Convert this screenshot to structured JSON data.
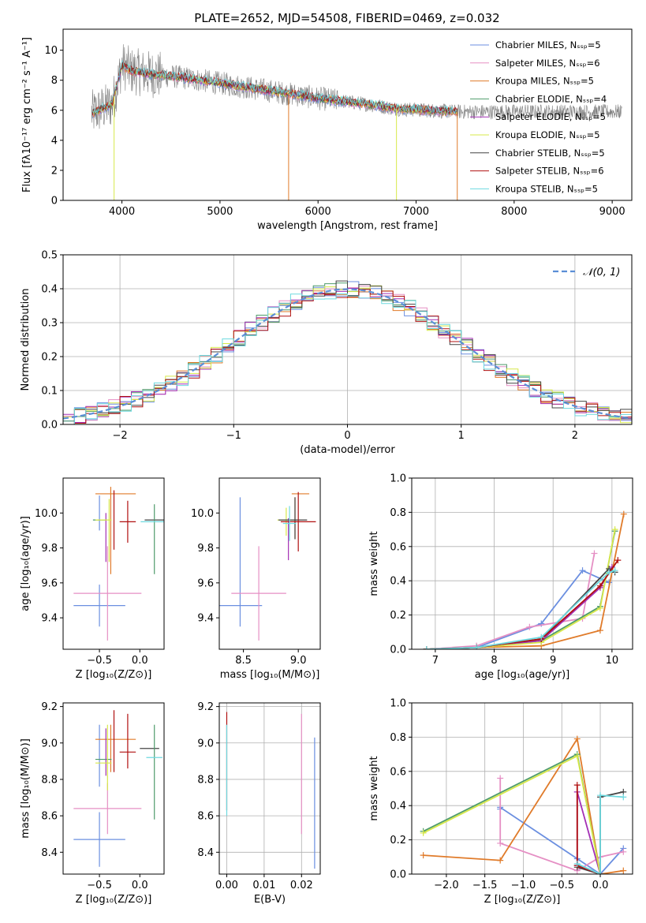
{
  "figure": {
    "title": "PLATE=2652, MJD=54508, FIBERID=0469, z=0.032"
  },
  "chart_data": [
    {
      "id": "spectrum",
      "type": "line",
      "title": "PLATE=2652, MJD=54508, FIBERID=0469, z=0.032",
      "xlabel": "wavelength [Angstrom, rest frame]",
      "ylabel": "Flux [fλ10⁻¹⁷ erg cm⁻² s⁻¹ A⁻¹]",
      "xlim": [
        3400,
        9200
      ],
      "ylim": [
        0,
        11.4
      ],
      "xticks": [
        4000,
        5000,
        6000,
        7000,
        8000,
        9000
      ],
      "yticks": [
        0,
        2,
        4,
        6,
        8,
        10
      ],
      "grid": false,
      "legend_position": "top-right",
      "data_trend": {
        "x": [
          3700,
          3900,
          4000,
          4100,
          4300,
          4600,
          5000,
          5500,
          6000,
          6500,
          6800,
          7100,
          7400
        ],
        "y": [
          5.8,
          6.4,
          9.0,
          8.6,
          8.4,
          8.2,
          7.8,
          7.3,
          6.8,
          6.4,
          6.1,
          6.0,
          5.9
        ]
      },
      "series": [
        {
          "name": "Chabrier MILES, N_SSP=5",
          "color": "#6b8fe0"
        },
        {
          "name": "Salpeter MILES, N_SSP=6",
          "color": "#e58fc4"
        },
        {
          "name": "Kroupa MILES, N_SSP=5",
          "color": "#e07b2a"
        },
        {
          "name": "Chabrier ELODIE, N_SSP=4",
          "color": "#4e9b6b"
        },
        {
          "name": "Salpeter ELODIE, N_SSP=5",
          "color": "#a330b5"
        },
        {
          "name": "Kroupa ELODIE, N_SSP=5",
          "color": "#d7e84a"
        },
        {
          "name": "Chabrier STELIB, N_SSP=5",
          "color": "#444444"
        },
        {
          "name": "Salpeter STELIB, N_SSP=6",
          "color": "#b01010"
        },
        {
          "name": "Kroupa STELIB, N_SSP=5",
          "color": "#6dd9df"
        }
      ]
    },
    {
      "id": "residuals",
      "type": "line",
      "xlabel": "(data-model)/error",
      "ylabel": "Normed distribution",
      "xlim": [
        -2.5,
        2.5
      ],
      "ylim": [
        0,
        0.5
      ],
      "xticks": [
        -2,
        -1,
        0,
        1,
        2
      ],
      "yticks": [
        0.0,
        0.1,
        0.2,
        0.3,
        0.4,
        0.5
      ],
      "grid": true,
      "legend_position": "top-right",
      "legend_label": "𝒩(0, 1)",
      "normal_color": "#5b8ed6"
    },
    {
      "id": "Z_age",
      "type": "scatter",
      "xlabel": "Z [log₁₀(Z/Z⊙)]",
      "ylabel": "age  [log₁₀(age/yr)]",
      "xlim": [
        -0.95,
        0.3
      ],
      "ylim": [
        9.22,
        10.2
      ],
      "xticks": [
        -0.5,
        0.0
      ],
      "yticks": [
        9.4,
        9.6,
        9.8,
        10.0
      ],
      "grid": false,
      "points": [
        {
          "x": -0.5,
          "y": 9.47,
          "xerr": 0.32,
          "yerr": 0.12,
          "color": "#6b8fe0"
        },
        {
          "x": -0.5,
          "y": 10.0,
          "xerr": 0.0,
          "yerr": 0.1,
          "color": "#6b8fe0"
        },
        {
          "x": -0.4,
          "y": 9.54,
          "xerr": 0.42,
          "yerr": 0.27,
          "color": "#e58fc4"
        },
        {
          "x": -0.3,
          "y": 10.11,
          "xerr": 0.25,
          "yerr": 0.0,
          "color": "#e07b2a"
        },
        {
          "x": -0.36,
          "y": 9.9,
          "xerr": 0.0,
          "yerr": 0.25,
          "color": "#e07b2a"
        },
        {
          "x": -0.5,
          "y": 9.96,
          "xerr": 0.08,
          "yerr": 0.0,
          "color": "#4e9b6b"
        },
        {
          "x": -0.42,
          "y": 9.86,
          "xerr": 0.0,
          "yerr": 0.14,
          "color": "#a330b5"
        },
        {
          "x": -0.45,
          "y": 9.96,
          "xerr": 0.1,
          "yerr": 0.0,
          "color": "#d7e84a"
        },
        {
          "x": -0.38,
          "y": 9.9,
          "xerr": 0.0,
          "yerr": 0.18,
          "color": "#d7e84a"
        },
        {
          "x": 0.18,
          "y": 9.96,
          "xerr": 0.12,
          "yerr": 0.0,
          "color": "#444444"
        },
        {
          "x": -0.15,
          "y": 9.95,
          "xerr": 0.1,
          "yerr": 0.12,
          "color": "#b01010"
        },
        {
          "x": -0.32,
          "y": 9.96,
          "xerr": 0.0,
          "yerr": 0.17,
          "color": "#b01010"
        },
        {
          "x": 0.18,
          "y": 9.85,
          "xerr": 0.0,
          "yerr": 0.2,
          "color": "#4e9b6b"
        },
        {
          "x": 0.18,
          "y": 9.95,
          "xerr": 0.17,
          "yerr": 0.0,
          "color": "#6dd9df"
        }
      ]
    },
    {
      "id": "mass_age",
      "type": "scatter",
      "xlabel": "mass [log₁₀(M/M⊙)]",
      "xlim": [
        8.28,
        9.2
      ],
      "ylim": [
        9.22,
        10.2
      ],
      "xticks": [
        8.5,
        9.0
      ],
      "yticks": [
        9.4,
        9.6,
        9.8,
        10.0
      ],
      "grid": false,
      "points": [
        {
          "x": 8.47,
          "y": 9.47,
          "xerr": 0.2,
          "yerr": 0.0,
          "color": "#6b8fe0"
        },
        {
          "x": 8.47,
          "y": 9.72,
          "xerr": 0.0,
          "yerr": 0.37,
          "color": "#6b8fe0"
        },
        {
          "x": 8.64,
          "y": 9.54,
          "xerr": 0.25,
          "yerr": 0.27,
          "color": "#e58fc4"
        },
        {
          "x": 9.02,
          "y": 10.11,
          "xerr": 0.08,
          "yerr": 0.0,
          "color": "#e07b2a"
        },
        {
          "x": 8.97,
          "y": 9.97,
          "xerr": 0.0,
          "yerr": 0.12,
          "color": "#e07b2a"
        },
        {
          "x": 8.91,
          "y": 9.96,
          "xerr": 0.08,
          "yerr": 0.0,
          "color": "#4e9b6b"
        },
        {
          "x": 8.91,
          "y": 9.85,
          "xerr": 0.0,
          "yerr": 0.12,
          "color": "#a330b5"
        },
        {
          "x": 8.89,
          "y": 9.96,
          "xerr": 0.08,
          "yerr": 0.0,
          "color": "#d7e84a"
        },
        {
          "x": 8.89,
          "y": 9.95,
          "xerr": 0.0,
          "yerr": 0.08,
          "color": "#d7e84a"
        },
        {
          "x": 8.97,
          "y": 9.97,
          "xerr": 0.0,
          "yerr": 0.12,
          "color": "#444444"
        },
        {
          "x": 8.95,
          "y": 9.96,
          "xerr": 0.13,
          "yerr": 0.0,
          "color": "#444444"
        },
        {
          "x": 9.0,
          "y": 9.95,
          "xerr": 0.16,
          "yerr": 0.17,
          "color": "#b01010"
        },
        {
          "x": 8.92,
          "y": 9.94,
          "xerr": 0.06,
          "yerr": 0.1,
          "color": "#6dd9df"
        }
      ]
    },
    {
      "id": "age_weight",
      "type": "line",
      "xlabel": "age  [log₁₀(age/yr)]",
      "ylabel": "mass weight",
      "xlim": [
        6.6,
        10.35
      ],
      "ylim": [
        0,
        1.0
      ],
      "xticks": [
        7,
        8,
        9,
        10
      ],
      "yticks": [
        0.0,
        0.2,
        0.4,
        0.6,
        0.8,
        1.0
      ],
      "grid": true,
      "series": [
        {
          "color": "#6b8fe0",
          "x": [
            6.85,
            7.7,
            8.8,
            9.5,
            9.95
          ],
          "y": [
            0.0,
            0.01,
            0.15,
            0.46,
            0.39
          ]
        },
        {
          "color": "#e58fc4",
          "x": [
            6.85,
            7.7,
            8.6,
            9.5,
            9.7
          ],
          "y": [
            0.0,
            0.02,
            0.13,
            0.18,
            0.56
          ]
        },
        {
          "color": "#e07b2a",
          "x": [
            6.85,
            7.7,
            8.8,
            9.8,
            10.2
          ],
          "y": [
            0.0,
            0.01,
            0.02,
            0.11,
            0.79
          ]
        },
        {
          "color": "#4e9b6b",
          "x": [
            6.85,
            7.7,
            8.8,
            9.8,
            10.05
          ],
          "y": [
            0.0,
            0.01,
            0.05,
            0.25,
            0.69
          ]
        },
        {
          "color": "#a330b5",
          "x": [
            6.85,
            7.7,
            8.8,
            9.8,
            10.0
          ],
          "y": [
            0.0,
            0.01,
            0.05,
            0.36,
            0.48
          ]
        },
        {
          "color": "#d7e84a",
          "x": [
            6.85,
            7.7,
            8.8,
            9.8,
            10.05
          ],
          "y": [
            0.0,
            0.01,
            0.04,
            0.24,
            0.7
          ]
        },
        {
          "color": "#444444",
          "x": [
            6.85,
            7.7,
            8.8,
            9.95,
            10.05
          ],
          "y": [
            0.0,
            0.01,
            0.06,
            0.47,
            0.45
          ]
        },
        {
          "color": "#b01010",
          "x": [
            6.85,
            7.7,
            8.8,
            9.8,
            10.1
          ],
          "y": [
            0.0,
            0.01,
            0.06,
            0.37,
            0.52
          ]
        },
        {
          "color": "#6dd9df",
          "x": [
            6.85,
            7.7,
            8.8,
            9.95,
            10.05
          ],
          "y": [
            0.0,
            0.01,
            0.07,
            0.45,
            0.46
          ]
        }
      ]
    },
    {
      "id": "Z_mass",
      "type": "scatter",
      "xlabel": "Z [log₁₀(Z/Z⊙)]",
      "ylabel": "mass [log₁₀(M/M⊙)]",
      "xlim": [
        -0.95,
        0.3
      ],
      "ylim": [
        8.28,
        9.22
      ],
      "xticks": [
        -0.5,
        0.0
      ],
      "yticks": [
        8.4,
        8.6,
        8.8,
        9.0,
        9.2
      ],
      "grid": false,
      "points": [
        {
          "x": -0.5,
          "y": 8.47,
          "xerr": 0.32,
          "yerr": 0.15,
          "color": "#6b8fe0"
        },
        {
          "x": -0.5,
          "y": 8.93,
          "xerr": 0.0,
          "yerr": 0.17,
          "color": "#6b8fe0"
        },
        {
          "x": -0.4,
          "y": 8.64,
          "xerr": 0.42,
          "yerr": 0.14,
          "color": "#e58fc4"
        },
        {
          "x": -0.3,
          "y": 9.02,
          "xerr": 0.25,
          "yerr": 0.0,
          "color": "#e07b2a"
        },
        {
          "x": -0.36,
          "y": 8.97,
          "xerr": 0.0,
          "yerr": 0.13,
          "color": "#e07b2a"
        },
        {
          "x": -0.45,
          "y": 8.91,
          "xerr": 0.1,
          "yerr": 0.0,
          "color": "#4e9b6b"
        },
        {
          "x": -0.42,
          "y": 8.95,
          "xerr": 0.0,
          "yerr": 0.13,
          "color": "#a330b5"
        },
        {
          "x": -0.45,
          "y": 8.89,
          "xerr": 0.1,
          "yerr": 0.0,
          "color": "#d7e84a"
        },
        {
          "x": -0.4,
          "y": 8.92,
          "xerr": 0.0,
          "yerr": 0.18,
          "color": "#d7e84a"
        },
        {
          "x": 0.12,
          "y": 8.97,
          "xerr": 0.12,
          "yerr": 0.0,
          "color": "#444444"
        },
        {
          "x": -0.15,
          "y": 8.95,
          "xerr": 0.1,
          "yerr": 0.0,
          "color": "#b01010"
        },
        {
          "x": -0.32,
          "y": 9.01,
          "xerr": 0.0,
          "yerr": 0.17,
          "color": "#b01010"
        },
        {
          "x": -0.15,
          "y": 9.01,
          "xerr": 0.0,
          "yerr": 0.15,
          "color": "#b01010"
        },
        {
          "x": 0.18,
          "y": 8.84,
          "xerr": 0.0,
          "yerr": 0.26,
          "color": "#4e9b6b"
        },
        {
          "x": 0.18,
          "y": 8.92,
          "xerr": 0.1,
          "yerr": 0.0,
          "color": "#6dd9df"
        }
      ]
    },
    {
      "id": "ebv_mass",
      "type": "scatter",
      "xlabel": "E(B-V)",
      "xlim": [
        -0.002,
        0.025
      ],
      "ylim": [
        8.28,
        9.22
      ],
      "xticks": [
        0.0,
        0.01,
        0.02
      ],
      "yticks": [
        8.4,
        8.6,
        8.8,
        9.0,
        9.2
      ],
      "grid": true,
      "points": [
        {
          "x": 0.0,
          "y": 8.9,
          "xerr": 0.0,
          "yerr": 0.27,
          "color": "#b01010"
        },
        {
          "x": 0.0,
          "y": 8.85,
          "xerr": 0.0,
          "yerr": 0.25,
          "color": "#6dd9df"
        },
        {
          "x": 0.02,
          "y": 8.83,
          "xerr": 0.0,
          "yerr": 0.33,
          "color": "#e58fc4"
        },
        {
          "x": 0.0235,
          "y": 8.67,
          "xerr": 0.0,
          "yerr": 0.36,
          "color": "#6b8fe0"
        }
      ]
    },
    {
      "id": "Z_weight",
      "type": "line",
      "xlabel": "Z [log₁₀(Z/Z⊙)]",
      "ylabel": "mass weight",
      "xlim": [
        -2.45,
        0.42
      ],
      "ylim": [
        0,
        1.0
      ],
      "xticks": [
        -2.0,
        -1.5,
        -1.0,
        -0.5,
        0.0
      ],
      "yticks": [
        0.0,
        0.2,
        0.4,
        0.6,
        0.8,
        1.0
      ],
      "grid": true,
      "series": [
        {
          "color": "#6b8fe0",
          "x": [
            -1.3,
            -1.3,
            -0.3,
            0.0,
            0.3
          ],
          "y": [
            0.38,
            0.39,
            0.09,
            0.0,
            0.15
          ]
        },
        {
          "color": "#e58fc4",
          "x": [
            -1.3,
            -1.3,
            -0.3,
            0.0,
            0.3
          ],
          "y": [
            0.56,
            0.18,
            0.02,
            0.1,
            0.13
          ]
        },
        {
          "color": "#e07b2a",
          "x": [
            -2.3,
            -1.3,
            -0.3,
            0.0,
            0.3
          ],
          "y": [
            0.11,
            0.08,
            0.79,
            0.0,
            0.02
          ]
        },
        {
          "color": "#4e9b6b",
          "x": [
            -2.3,
            -0.3,
            0.0
          ],
          "y": [
            0.25,
            0.7,
            0.0
          ]
        },
        {
          "color": "#a330b5",
          "x": [
            -0.3,
            -0.3,
            0.0
          ],
          "y": [
            0.05,
            0.48,
            0.0
          ]
        },
        {
          "color": "#d7e84a",
          "x": [
            -2.3,
            -0.3,
            0.0
          ],
          "y": [
            0.24,
            0.69,
            0.0
          ]
        },
        {
          "color": "#444444",
          "x": [
            -0.3,
            0.0,
            0.0,
            0.3
          ],
          "y": [
            0.04,
            0.0,
            0.45,
            0.48
          ]
        },
        {
          "color": "#b01010",
          "x": [
            -0.3,
            -0.3,
            0.0
          ],
          "y": [
            0.52,
            0.05,
            0.0
          ]
        },
        {
          "color": "#6dd9df",
          "x": [
            -0.3,
            0.0,
            0.0,
            0.3
          ],
          "y": [
            0.06,
            0.0,
            0.46,
            0.45
          ]
        }
      ]
    }
  ]
}
